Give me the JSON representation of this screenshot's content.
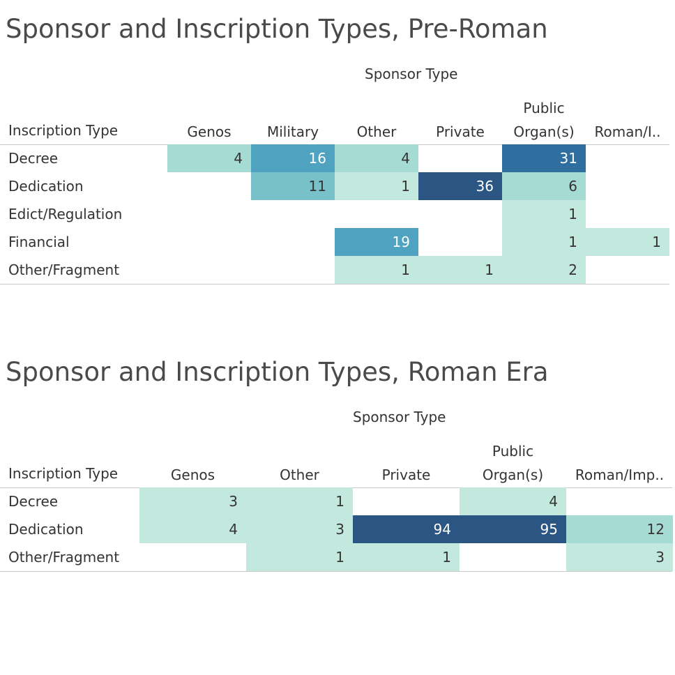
{
  "colors": {
    "scale": [
      "#c3e8dd",
      "#a6dbd3",
      "#78c1c9",
      "#4fa3c0",
      "#2f6f9f",
      "#2b5683"
    ],
    "text_dark": "#333333",
    "text_light": "#ffffff"
  },
  "chart_data": [
    {
      "type": "heatmap",
      "title": "Sponsor and Inscription Types, Pre-Roman",
      "column_title": "Sponsor Type",
      "row_title": "Inscription Type",
      "columns": [
        {
          "line1": "",
          "line2": "Genos"
        },
        {
          "line1": "",
          "line2": "Military"
        },
        {
          "line1": "",
          "line2": "Other"
        },
        {
          "line1": "",
          "line2": "Private"
        },
        {
          "line1": "Public",
          "line2": "Organ(s)"
        },
        {
          "line1": "",
          "line2": "Roman/I.."
        }
      ],
      "rows": [
        "Decree",
        "Dedication",
        "Edict/Regulation",
        "Financial",
        "Other/Fragment"
      ],
      "values": [
        [
          4,
          16,
          4,
          null,
          31,
          null
        ],
        [
          null,
          11,
          1,
          36,
          6,
          null
        ],
        [
          null,
          null,
          null,
          null,
          1,
          null
        ],
        [
          null,
          null,
          19,
          null,
          1,
          1
        ],
        [
          null,
          null,
          1,
          1,
          2,
          null
        ]
      ]
    },
    {
      "type": "heatmap",
      "title": "Sponsor and Inscription Types, Roman Era",
      "column_title": "Sponsor Type",
      "row_title": "Inscription Type",
      "columns": [
        {
          "line1": "",
          "line2": "Genos"
        },
        {
          "line1": "",
          "line2": "Other"
        },
        {
          "line1": "",
          "line2": "Private"
        },
        {
          "line1": "Public",
          "line2": "Organ(s)"
        },
        {
          "line1": "",
          "line2": "Roman/Imp.."
        }
      ],
      "rows": [
        "Decree",
        "Dedication",
        "Other/Fragment"
      ],
      "values": [
        [
          3,
          1,
          null,
          4,
          null
        ],
        [
          4,
          3,
          94,
          95,
          12
        ],
        [
          null,
          1,
          1,
          null,
          3
        ]
      ]
    }
  ]
}
